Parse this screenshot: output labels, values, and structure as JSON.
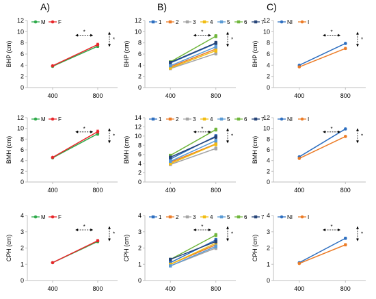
{
  "colors": {
    "M": "#2eaa4a",
    "F": "#e8262a",
    "g1": "#2e6fc0",
    "g2": "#ec7c27",
    "g3": "#a5a5a5",
    "g4": "#f2bd12",
    "g5": "#5b9bd5",
    "g6": "#70b63c",
    "g7": "#264478",
    "NI": "#2e6fc0",
    "I": "#ec7c27",
    "axis": "#bfbfbf",
    "annot": "#000000"
  },
  "column_labels": [
    "A)",
    "B)",
    "C)"
  ],
  "significance_marker": "*",
  "chart_data": [
    {
      "id": "A-BHP",
      "type": "line",
      "categories": [
        "400",
        "800"
      ],
      "ylabel": "BHP (cm)",
      "ylim": [
        0,
        12
      ],
      "yticks": [
        0,
        2,
        4,
        6,
        8,
        10,
        12
      ],
      "series": [
        {
          "name": "M",
          "values": [
            3.8,
            7.4
          ],
          "error": [
            0.1,
            0.25
          ]
        },
        {
          "name": "F",
          "values": [
            3.9,
            7.7
          ],
          "error": [
            0.1,
            0.25
          ]
        }
      ]
    },
    {
      "id": "B-BHP",
      "type": "line",
      "categories": [
        "400",
        "800"
      ],
      "ylabel": "BHP (cm)",
      "ylim": [
        0,
        12
      ],
      "yticks": [
        0,
        2,
        4,
        6,
        8,
        10,
        12
      ],
      "series": [
        {
          "name": "1",
          "values": [
            4.4,
            7.9
          ],
          "error": [
            0.2,
            0.3
          ]
        },
        {
          "name": "2",
          "values": [
            3.7,
            6.9
          ],
          "error": [
            0.2,
            0.3
          ]
        },
        {
          "name": "3",
          "values": [
            3.4,
            6.1
          ],
          "error": [
            0.2,
            0.3
          ]
        },
        {
          "name": "4",
          "values": [
            3.5,
            6.6
          ],
          "error": [
            0.2,
            0.3
          ]
        },
        {
          "name": "5",
          "values": [
            3.9,
            7.3
          ],
          "error": [
            0.2,
            0.3
          ]
        },
        {
          "name": "6",
          "values": [
            4.6,
            9.2
          ],
          "error": [
            0.2,
            0.3
          ]
        },
        {
          "name": "7",
          "values": [
            4.5,
            8.0
          ],
          "error": [
            0.2,
            0.3
          ]
        }
      ]
    },
    {
      "id": "C-BHP",
      "type": "line",
      "categories": [
        "400",
        "800"
      ],
      "ylabel": "BHP (cm)",
      "ylim": [
        0,
        12
      ],
      "yticks": [
        0,
        2,
        4,
        6,
        8,
        10,
        12
      ],
      "series": [
        {
          "name": "NI",
          "values": [
            4.0,
            7.9
          ],
          "error": [
            0.1,
            0.2
          ]
        },
        {
          "name": "I",
          "values": [
            3.7,
            7.0
          ],
          "error": [
            0.1,
            0.2
          ]
        }
      ]
    },
    {
      "id": "A-BMH",
      "type": "line",
      "categories": [
        "400",
        "800"
      ],
      "ylabel": "BMH (cm)",
      "ylim": [
        0,
        12
      ],
      "yticks": [
        0,
        2,
        4,
        6,
        8,
        10,
        12
      ],
      "series": [
        {
          "name": "M",
          "values": [
            4.5,
            9.0
          ],
          "error": [
            0.1,
            0.3
          ]
        },
        {
          "name": "F",
          "values": [
            4.6,
            9.4
          ],
          "error": [
            0.1,
            0.3
          ]
        }
      ]
    },
    {
      "id": "B-BMH",
      "type": "line",
      "categories": [
        "400",
        "800"
      ],
      "ylabel": "BMH (cm)",
      "ylim": [
        0,
        14
      ],
      "yticks": [
        0,
        2,
        4,
        6,
        8,
        10,
        12,
        14
      ],
      "series": [
        {
          "name": "1",
          "values": [
            5.0,
            10.0
          ],
          "error": [
            0.25,
            0.35
          ]
        },
        {
          "name": "2",
          "values": [
            4.3,
            8.3
          ],
          "error": [
            0.25,
            0.35
          ]
        },
        {
          "name": "3",
          "values": [
            3.8,
            7.3
          ],
          "error": [
            0.25,
            0.35
          ]
        },
        {
          "name": "4",
          "values": [
            4.0,
            8.2
          ],
          "error": [
            0.25,
            0.35
          ]
        },
        {
          "name": "5",
          "values": [
            4.5,
            9.0
          ],
          "error": [
            0.25,
            0.35
          ]
        },
        {
          "name": "6",
          "values": [
            5.8,
            11.4
          ],
          "error": [
            0.25,
            0.35
          ]
        },
        {
          "name": "7",
          "values": [
            5.4,
            9.8
          ],
          "error": [
            0.25,
            0.35
          ]
        }
      ]
    },
    {
      "id": "C-BMH",
      "type": "line",
      "categories": [
        "400",
        "800"
      ],
      "ylabel": "BMH (cm)",
      "ylim": [
        0,
        12
      ],
      "yticks": [
        0,
        2,
        4,
        6,
        8,
        10,
        12
      ],
      "series": [
        {
          "name": "NI",
          "values": [
            4.7,
            9.9
          ],
          "error": [
            0.1,
            0.2
          ]
        },
        {
          "name": "I",
          "values": [
            4.4,
            8.5
          ],
          "error": [
            0.1,
            0.2
          ]
        }
      ]
    },
    {
      "id": "A-CPH",
      "type": "line",
      "categories": [
        "400",
        "800"
      ],
      "ylabel": "CPH (cm)",
      "ylim": [
        0,
        4
      ],
      "yticks": [
        0,
        1,
        2,
        3,
        4
      ],
      "series": [
        {
          "name": "M",
          "values": [
            1.1,
            2.4
          ],
          "error": [
            0.04,
            0.08
          ]
        },
        {
          "name": "F",
          "values": [
            1.1,
            2.45
          ],
          "error": [
            0.04,
            0.08
          ]
        }
      ]
    },
    {
      "id": "B-CPH",
      "type": "line",
      "categories": [
        "400",
        "800"
      ],
      "ylabel": "CPH (cm)",
      "ylim": [
        0,
        4
      ],
      "yticks": [
        0,
        1,
        2,
        3,
        4
      ],
      "series": [
        {
          "name": "1",
          "values": [
            1.1,
            2.5
          ],
          "error": [
            0.08,
            0.1
          ]
        },
        {
          "name": "2",
          "values": [
            1.0,
            2.2
          ],
          "error": [
            0.08,
            0.1
          ]
        },
        {
          "name": "3",
          "values": [
            0.9,
            2.0
          ],
          "error": [
            0.08,
            0.1
          ]
        },
        {
          "name": "4",
          "values": [
            1.0,
            2.3
          ],
          "error": [
            0.08,
            0.1
          ]
        },
        {
          "name": "5",
          "values": [
            0.9,
            2.1
          ],
          "error": [
            0.08,
            0.1
          ]
        },
        {
          "name": "6",
          "values": [
            1.3,
            2.8
          ],
          "error": [
            0.08,
            0.1
          ]
        },
        {
          "name": "7",
          "values": [
            1.3,
            2.4
          ],
          "error": [
            0.08,
            0.1
          ]
        }
      ]
    },
    {
      "id": "C-CPH",
      "type": "line",
      "categories": [
        "400",
        "800"
      ],
      "ylabel": "CPH (cm)",
      "ylim": [
        0,
        4
      ],
      "yticks": [
        0,
        1,
        2,
        3,
        4
      ],
      "series": [
        {
          "name": "NI",
          "values": [
            1.1,
            2.6
          ],
          "error": [
            0.04,
            0.08
          ]
        },
        {
          "name": "I",
          "values": [
            1.05,
            2.2
          ],
          "error": [
            0.04,
            0.08
          ]
        }
      ]
    }
  ]
}
